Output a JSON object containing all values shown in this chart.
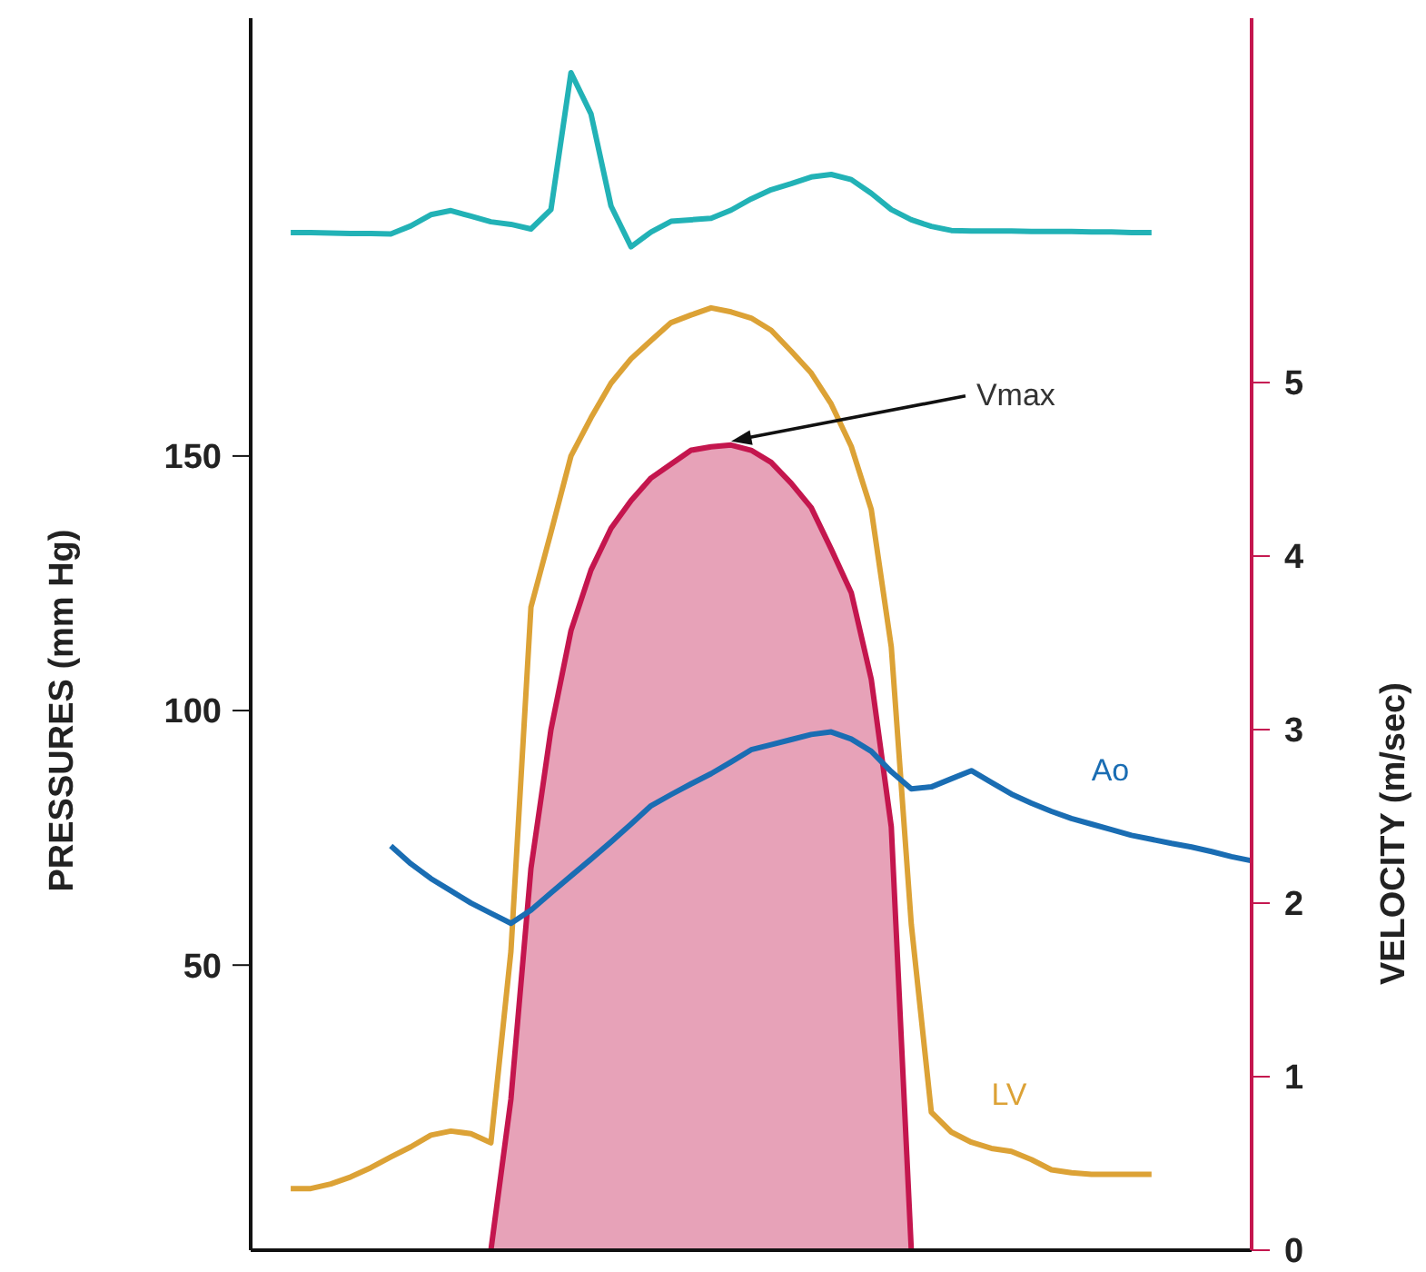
{
  "chart_data": {
    "type": "line",
    "ylabel": "PRESSURES (mm Hg)",
    "y2label": "VELOCITY (m/sec)",
    "categories": [
      null,
      null,
      null,
      null,
      null,
      null,
      null,
      null,
      null,
      null,
      null,
      null,
      null,
      null,
      null,
      null,
      null,
      null,
      null,
      null,
      null,
      null,
      null,
      null,
      null,
      null,
      null,
      null,
      null,
      null,
      null,
      null,
      null,
      null,
      null,
      null,
      null,
      null,
      null,
      null,
      null,
      null,
      null,
      null,
      null,
      null,
      null,
      null,
      null,
      null,
      null
    ],
    "ylim": [
      -6,
      236
    ],
    "yticks": [
      50,
      100,
      150
    ],
    "y2lim": [
      0,
      7.1
    ],
    "y2ticks": [
      0,
      1,
      2,
      3,
      4,
      5
    ],
    "marker": "none",
    "line_style": "solid",
    "series": [
      {
        "color": "#22b2b6",
        "values": [
          null,
          null,
          193.9,
          193.9,
          193.8,
          193.7,
          193.7,
          193.6,
          195.2,
          197.4,
          198.2,
          197.1,
          196,
          195.5,
          194.6,
          198.4,
          225.3,
          217.2,
          199.1,
          191.1,
          194,
          196.1,
          196.4,
          196.7,
          198.3,
          200.5,
          202.3,
          203.5,
          204.8,
          205.3,
          204.3,
          201.6,
          198.4,
          196.4,
          195.1,
          194.3,
          194.2,
          194.2,
          194.2,
          194.1,
          194.1,
          194.1,
          194,
          194,
          193.9,
          193.9,
          null,
          null,
          null,
          null,
          null
        ]
      },
      {
        "type": "area",
        "axis": "y2",
        "color": "#c4164e",
        "values": [
          null,
          null,
          null,
          null,
          null,
          null,
          null,
          null,
          null,
          null,
          null,
          null,
          0,
          0.87,
          2.2,
          3.0,
          3.57,
          3.92,
          4.16,
          4.32,
          4.45,
          4.53,
          4.61,
          4.63,
          4.64,
          4.61,
          4.54,
          4.42,
          4.28,
          4.04,
          3.79,
          3.29,
          2.44,
          0,
          null,
          null,
          null,
          null,
          null,
          null,
          null,
          null,
          null,
          null,
          null,
          null,
          null,
          null,
          null,
          null,
          null
        ]
      },
      {
        "name": "LV",
        "color": "#dca236",
        "values": [
          null,
          null,
          6.1,
          6.1,
          7.0,
          8.4,
          10.2,
          12.3,
          14.3,
          16.6,
          17.4,
          16.9,
          15.1,
          52.7,
          120.3,
          135,
          150,
          157.5,
          164.3,
          169.1,
          172.7,
          176.2,
          177.7,
          179.1,
          178.3,
          177.1,
          174.7,
          170.6,
          166.3,
          160.2,
          151.9,
          139.5,
          112.5,
          58,
          21.1,
          17.2,
          15.2,
          14,
          13.4,
          11.8,
          9.8,
          9.2,
          8.9,
          8.9,
          8.9,
          8.9,
          null,
          null,
          null,
          null,
          null
        ]
      },
      {
        "name": "Ao",
        "color": "#1a6db3",
        "values": [
          null,
          null,
          null,
          null,
          null,
          null,
          null,
          73.4,
          69.9,
          67.0,
          64.6,
          62.2,
          60.2,
          58.2,
          60.8,
          64.2,
          67.5,
          70.8,
          74.2,
          77.7,
          81.3,
          83.5,
          85.6,
          87.6,
          89.9,
          92.3,
          93.3,
          94.3,
          95.3,
          95.8,
          94.4,
          92,
          88,
          84.6,
          85,
          86.6,
          88.2,
          85.9,
          83.6,
          81.8,
          80.2,
          78.8,
          77.7,
          76.6,
          75.5,
          74.7,
          73.9,
          73.2,
          72.3,
          71.3,
          70.5
        ]
      }
    ],
    "annotations": [
      "Vmax"
    ]
  }
}
